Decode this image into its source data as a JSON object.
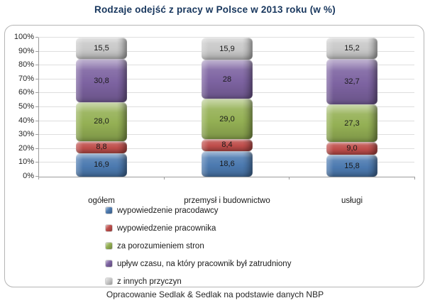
{
  "chart_data": {
    "type": "bar",
    "stacked": true,
    "percent_stacked": true,
    "title": "Rodzaje odejść z pracy w Polsce w 2013 roku (w %)",
    "title_color": "#17365d",
    "categories": [
      "ogółem",
      "przemysł i budownictwo",
      "usługi"
    ],
    "series": [
      {
        "name": "wypowiedzenie pracodawcy",
        "color": "#4c7ab0",
        "values": [
          16.9,
          18.6,
          15.8
        ]
      },
      {
        "name": "wypowiedzenie pracownika",
        "color": "#bf4e4b",
        "values": [
          8.8,
          8.4,
          9.0
        ]
      },
      {
        "name": "za porozumieniem stron",
        "color": "#94b054",
        "values": [
          28.0,
          29.0,
          27.3
        ]
      },
      {
        "name": "upływ czasu, na który pracownik był zatrudniony",
        "color": "#7d63a1",
        "values": [
          30.8,
          28.0,
          32.7
        ]
      },
      {
        "name": "z innych przyczyn",
        "color": "#c9c9c9",
        "values": [
          15.5,
          15.9,
          15.2
        ]
      }
    ],
    "bar_labels": [
      [
        "16,9",
        "8,8",
        "28,0",
        "30,8",
        "15,5"
      ],
      [
        "18,6",
        "8,4",
        "29,0",
        "28",
        "15,9"
      ],
      [
        "15,8",
        "9,0",
        "27,3",
        "32,7",
        "15,2"
      ]
    ],
    "yticks": [
      "0%",
      "10%",
      "20%",
      "30%",
      "40%",
      "50%",
      "60%",
      "70%",
      "80%",
      "90%",
      "100%"
    ],
    "ylim": [
      0,
      100
    ],
    "grid": true,
    "legend_position": "bottom-left"
  },
  "footer": {
    "source": "Opracowanie Sedlak & Sedlak na podstawie danych NBP"
  }
}
